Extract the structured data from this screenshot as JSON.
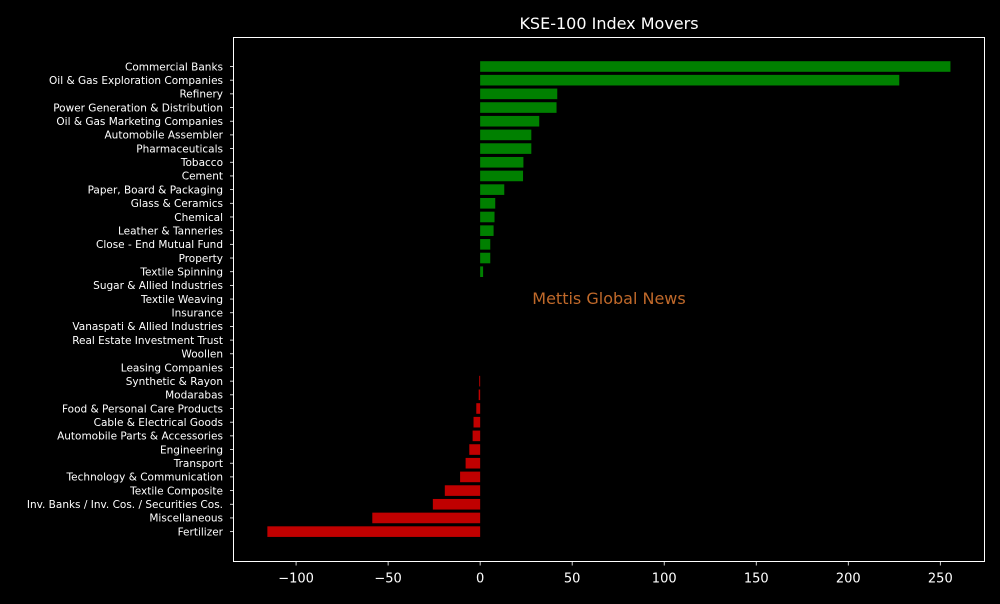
{
  "chart_data": {
    "type": "bar",
    "orientation": "horizontal",
    "title": "KSE-100 Index Movers",
    "watermark": "Mettis Global News",
    "xlabel": "",
    "ylabel": "",
    "xlim": [
      -134,
      274
    ],
    "xticks": [
      -100,
      -50,
      0,
      50,
      100,
      150,
      200,
      250
    ],
    "xtick_labels": [
      "−100",
      "−50",
      "0",
      "50",
      "100",
      "150",
      "200",
      "250"
    ],
    "grid": false,
    "legend": "none",
    "colors": {
      "background": "#000000",
      "axes": "#ffffff",
      "text": "#ffffff",
      "positive": "#008000",
      "negative": "#c00000",
      "watermark": "#c0692a"
    },
    "categories": [
      "Commercial Banks",
      "Oil & Gas Exploration Companies",
      "Refinery",
      "Power Generation & Distribution",
      "Oil & Gas Marketing Companies",
      "Automobile Assembler",
      "Pharmaceuticals",
      "Tobacco",
      "Cement",
      "Paper, Board & Packaging",
      "Glass & Ceramics",
      "Chemical",
      "Leather & Tanneries",
      "Close - End Mutual Fund",
      "Property",
      "Textile Spinning",
      "Sugar & Allied Industries",
      "Textile Weaving",
      "Insurance",
      "Vanaspati & Allied Industries",
      "Real Estate Investment Trust",
      "Woollen",
      "Leasing Companies",
      "Synthetic & Rayon",
      "Modarabas",
      "Food & Personal Care Products",
      "Cable & Electrical Goods",
      "Automobile Parts & Accessories",
      "Engineering",
      "Transport",
      "Technology & Communication",
      "Textile Composite",
      "Inv. Banks / Inv. Cos. / Securities Cos.",
      "Miscellaneous",
      "Fertilizer"
    ],
    "values": [
      255.5,
      227.7,
      41.9,
      41.5,
      32.1,
      27.8,
      27.8,
      23.5,
      23.3,
      13.1,
      8.2,
      7.8,
      7.3,
      5.5,
      5.5,
      1.6,
      0.0,
      0.0,
      0.0,
      0.0,
      0.0,
      0.0,
      0.0,
      -0.5,
      -0.8,
      -2.1,
      -3.6,
      -4.1,
      -5.9,
      -7.9,
      -10.9,
      -19.2,
      -25.7,
      -58.6,
      -115.6
    ]
  }
}
